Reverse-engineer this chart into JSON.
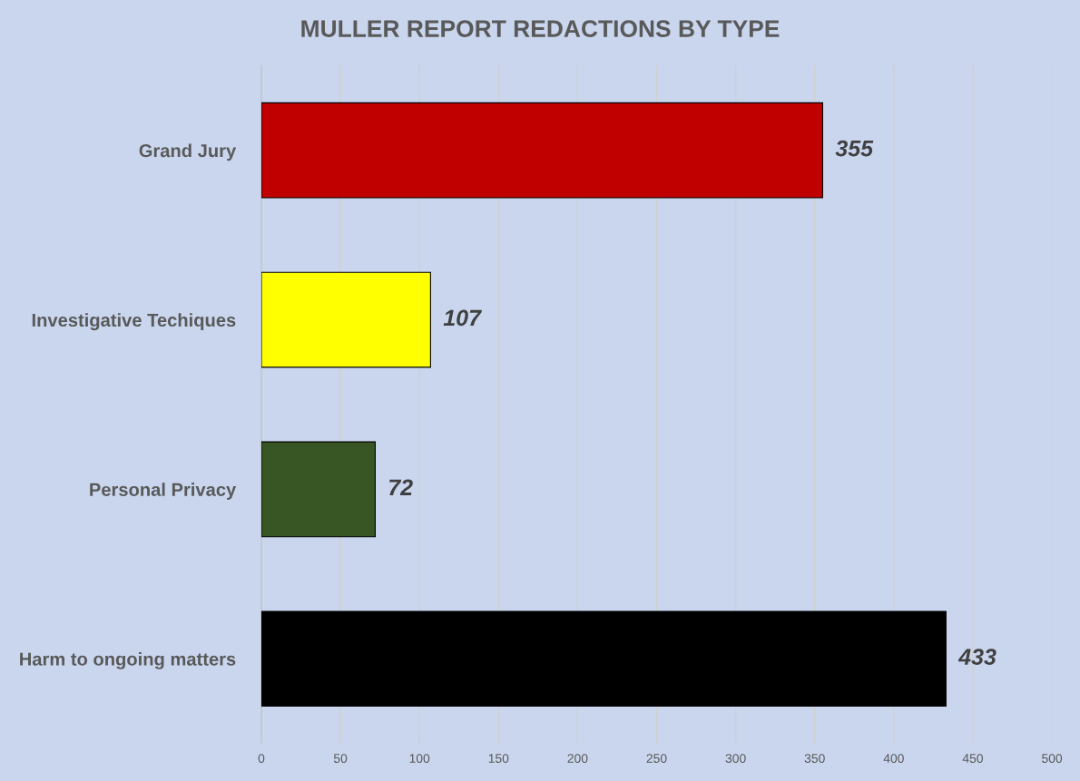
{
  "chart_data": {
    "type": "bar",
    "orientation": "horizontal",
    "title": "MULLER REPORT REDACTIONS BY TYPE",
    "categories": [
      "Grand Jury",
      "Investigative Techiques",
      "Personal Privacy",
      "Harm to ongoing matters"
    ],
    "values": [
      355,
      107,
      72,
      433
    ],
    "colors": [
      "#c00000",
      "#ffff00",
      "#375623",
      "#000000"
    ],
    "data_labels": true,
    "xlim": [
      0,
      500
    ],
    "xticks": [
      0,
      50,
      100,
      150,
      200,
      250,
      300,
      350,
      400,
      450,
      500
    ],
    "grid": "x"
  }
}
